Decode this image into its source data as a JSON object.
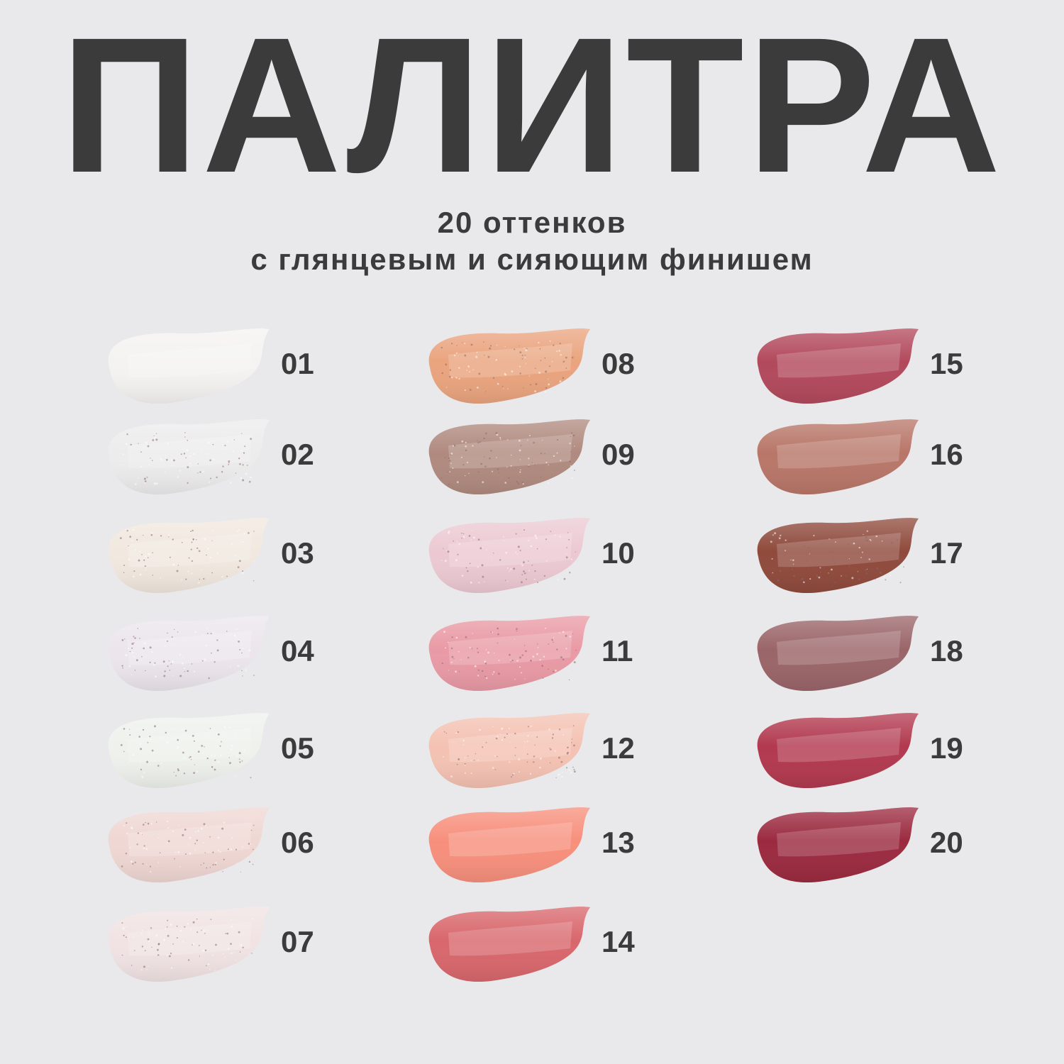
{
  "title": "ПАЛИТРА",
  "subtitle_line1": "20 оттенков",
  "subtitle_line2": "с глянцевым и сияющим финишем",
  "background_color": "#e9e9eb",
  "shades": [
    {
      "number": "01",
      "color": "#f4f3f1",
      "shimmer": false
    },
    {
      "number": "02",
      "color": "#edecec",
      "shimmer": true
    },
    {
      "number": "03",
      "color": "#f1e8df",
      "shimmer": true
    },
    {
      "number": "04",
      "color": "#ece6ec",
      "shimmer": true
    },
    {
      "number": "05",
      "color": "#eef1ec",
      "shimmer": true
    },
    {
      "number": "06",
      "color": "#efd7d3",
      "shimmer": true
    },
    {
      "number": "07",
      "color": "#f1e3e3",
      "shimmer": true
    },
    {
      "number": "08",
      "color": "#eaa47e",
      "shimmer": true
    },
    {
      "number": "09",
      "color": "#b08a7f",
      "shimmer": true
    },
    {
      "number": "10",
      "color": "#ecc9d2",
      "shimmer": true
    },
    {
      "number": "11",
      "color": "#e99aa5",
      "shimmer": true
    },
    {
      "number": "12",
      "color": "#f4c2b3",
      "shimmer": true
    },
    {
      "number": "13",
      "color": "#f78f7c",
      "shimmer": false
    },
    {
      "number": "14",
      "color": "#d8676c",
      "shimmer": false
    },
    {
      "number": "15",
      "color": "#b2495c",
      "shimmer": false
    },
    {
      "number": "16",
      "color": "#b87668",
      "shimmer": false
    },
    {
      "number": "17",
      "color": "#8f4a3c",
      "shimmer": true
    },
    {
      "number": "18",
      "color": "#9a6569",
      "shimmer": false
    },
    {
      "number": "19",
      "color": "#b2394f",
      "shimmer": false
    },
    {
      "number": "20",
      "color": "#9b2a3f",
      "shimmer": false
    }
  ]
}
